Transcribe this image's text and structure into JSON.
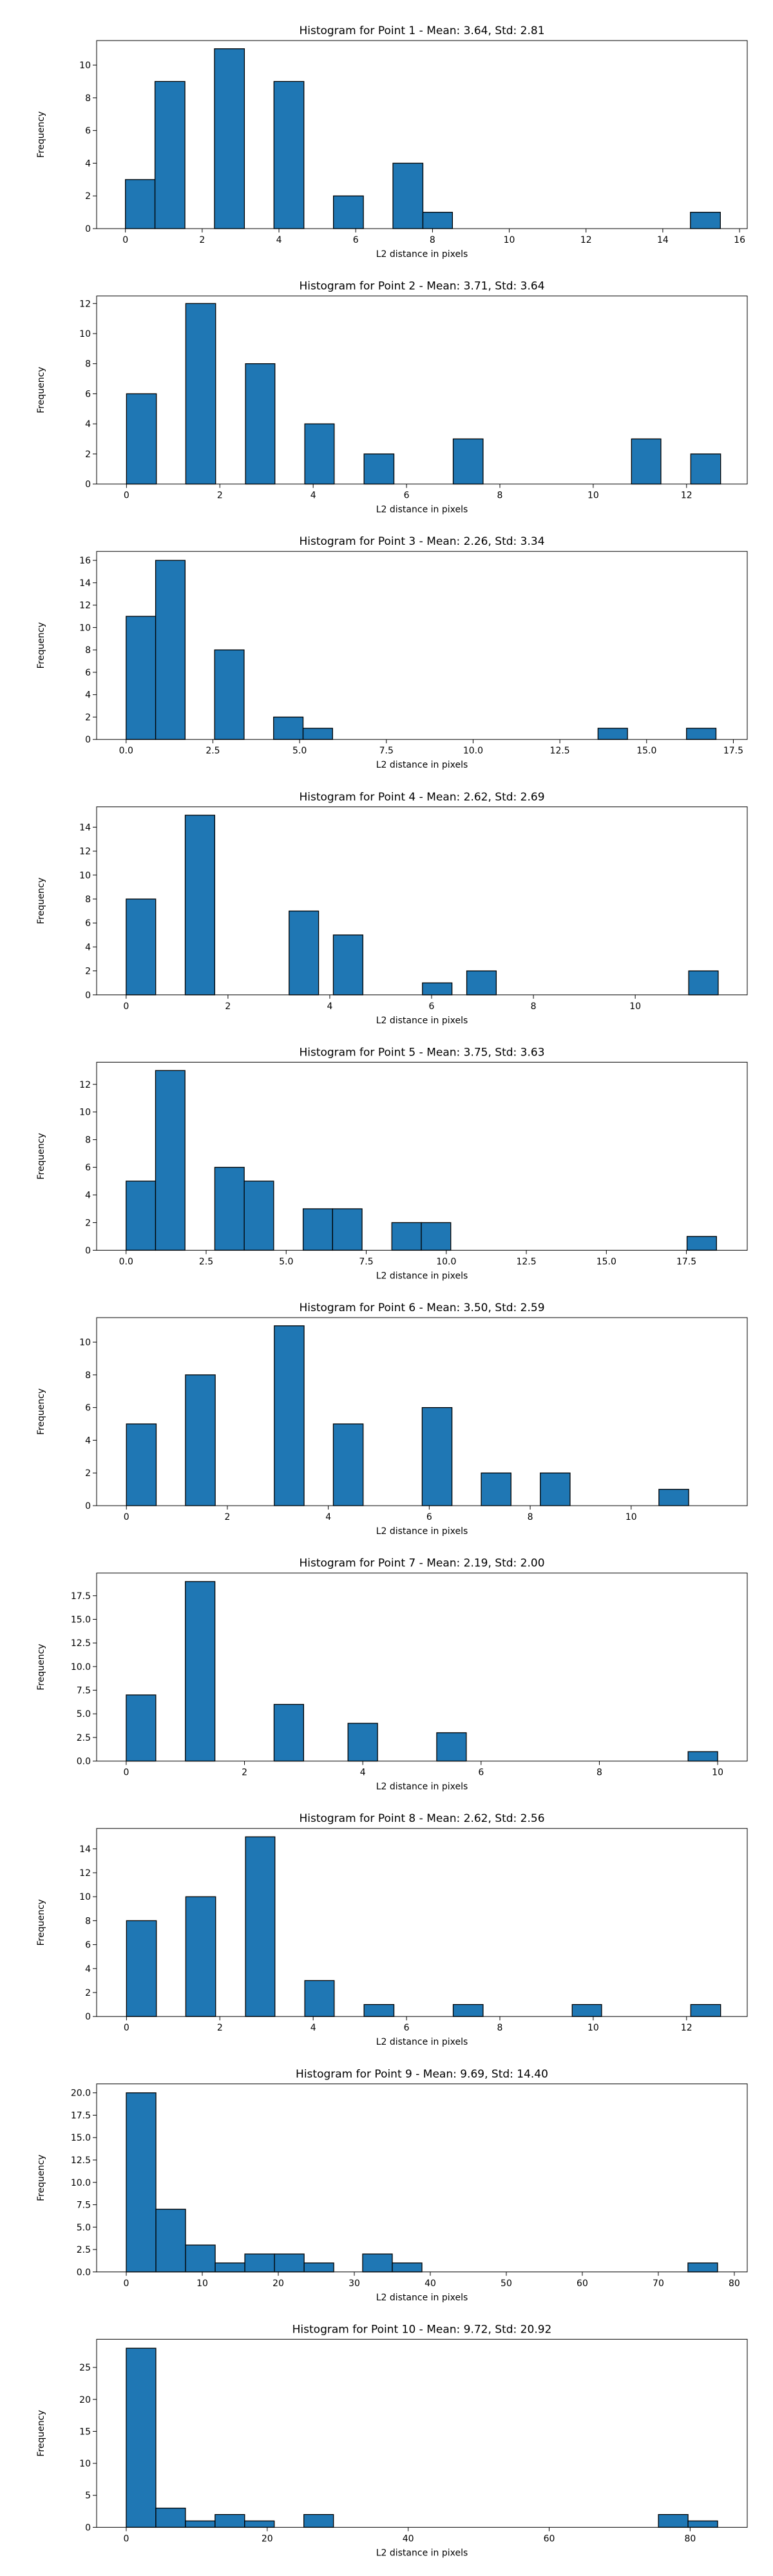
{
  "chart_data": [
    {
      "type": "bar",
      "title": "Histogram for Point 1 - Mean: 3.64, Std: 2.81",
      "xlabel": "L2 distance in pixels",
      "ylabel": "Frequency",
      "xlim": [
        -0.75,
        16.2
      ],
      "ylim": [
        0,
        11.5
      ],
      "xticks": [
        0,
        2,
        4,
        6,
        8,
        10,
        12,
        14,
        16
      ],
      "xtick_labels": [
        "0",
        "2",
        "4",
        "6",
        "8",
        "10",
        "12",
        "14",
        "16"
      ],
      "yticks": [
        0,
        2,
        4,
        6,
        8,
        10
      ],
      "ytick_labels": [
        "0",
        "2",
        "4",
        "6",
        "8",
        "10"
      ],
      "bins": [
        {
          "x0": 0.0,
          "x1": 0.77,
          "value": 3
        },
        {
          "x0": 0.77,
          "x1": 1.55,
          "value": 9
        },
        {
          "x0": 2.32,
          "x1": 3.1,
          "value": 11
        },
        {
          "x0": 3.87,
          "x1": 4.65,
          "value": 9
        },
        {
          "x0": 5.42,
          "x1": 6.2,
          "value": 2
        },
        {
          "x0": 6.97,
          "x1": 7.75,
          "value": 4
        },
        {
          "x0": 7.75,
          "x1": 8.52,
          "value": 1
        },
        {
          "x0": 14.72,
          "x1": 15.5,
          "value": 1
        }
      ]
    },
    {
      "type": "bar",
      "title": "Histogram for Point 2 - Mean: 3.71, Std: 3.64",
      "xlabel": "L2 distance in pixels",
      "ylabel": "Frequency",
      "xlim": [
        -0.64,
        13.3
      ],
      "ylim": [
        0,
        12.5
      ],
      "xticks": [
        0,
        2,
        4,
        6,
        8,
        10,
        12
      ],
      "xtick_labels": [
        "0",
        "2",
        "4",
        "6",
        "8",
        "10",
        "12"
      ],
      "yticks": [
        0,
        2,
        4,
        6,
        8,
        10,
        12
      ],
      "ytick_labels": [
        "0",
        "2",
        "4",
        "6",
        "8",
        "10",
        "12"
      ],
      "bins": [
        {
          "x0": 0.0,
          "x1": 0.64,
          "value": 6
        },
        {
          "x0": 1.27,
          "x1": 1.91,
          "value": 12
        },
        {
          "x0": 2.55,
          "x1": 3.18,
          "value": 8
        },
        {
          "x0": 3.82,
          "x1": 4.45,
          "value": 4
        },
        {
          "x0": 5.09,
          "x1": 5.73,
          "value": 2
        },
        {
          "x0": 7.0,
          "x1": 7.64,
          "value": 3
        },
        {
          "x0": 10.82,
          "x1": 11.45,
          "value": 3
        },
        {
          "x0": 12.09,
          "x1": 12.73,
          "value": 2
        }
      ]
    },
    {
      "type": "bar",
      "title": "Histogram for Point 3 - Mean: 2.26, Std: 3.34",
      "xlabel": "L2 distance in pixels",
      "ylabel": "Frequency",
      "xlim": [
        -0.85,
        17.9
      ],
      "ylim": [
        0,
        16.8
      ],
      "xticks": [
        0,
        2.5,
        5,
        7.5,
        10,
        12.5,
        15,
        17.5
      ],
      "xtick_labels": [
        "0.0",
        "2.5",
        "5.0",
        "7.5",
        "10.0",
        "12.5",
        "15.0",
        "17.5"
      ],
      "yticks": [
        0,
        2,
        4,
        6,
        8,
        10,
        12,
        14,
        16
      ],
      "ytick_labels": [
        "0",
        "2",
        "4",
        "6",
        "8",
        "10",
        "12",
        "14",
        "16"
      ],
      "bins": [
        {
          "x0": 0.0,
          "x1": 0.85,
          "value": 11
        },
        {
          "x0": 0.85,
          "x1": 1.7,
          "value": 16
        },
        {
          "x0": 2.55,
          "x1": 3.4,
          "value": 8
        },
        {
          "x0": 4.25,
          "x1": 5.1,
          "value": 2
        },
        {
          "x0": 5.1,
          "x1": 5.95,
          "value": 1
        },
        {
          "x0": 13.6,
          "x1": 14.45,
          "value": 1
        },
        {
          "x0": 16.15,
          "x1": 17.0,
          "value": 1
        }
      ]
    },
    {
      "type": "bar",
      "title": "Histogram for Point 4 - Mean: 2.62, Std: 2.69",
      "xlabel": "L2 distance in pixels",
      "ylabel": "Frequency",
      "xlim": [
        -0.58,
        12.2
      ],
      "ylim": [
        0,
        15.7
      ],
      "xticks": [
        0,
        2,
        4,
        6,
        8,
        10
      ],
      "xtick_labels": [
        "0",
        "2",
        "4",
        "6",
        "8",
        "10"
      ],
      "yticks": [
        0,
        2,
        4,
        6,
        8,
        10,
        12,
        14
      ],
      "ytick_labels": [
        "0",
        "2",
        "4",
        "6",
        "8",
        "10",
        "12",
        "14"
      ],
      "bins": [
        {
          "x0": 0.0,
          "x1": 0.58,
          "value": 8
        },
        {
          "x0": 1.16,
          "x1": 1.74,
          "value": 15
        },
        {
          "x0": 3.2,
          "x1": 3.78,
          "value": 7
        },
        {
          "x0": 4.07,
          "x1": 4.65,
          "value": 5
        },
        {
          "x0": 5.82,
          "x1": 6.4,
          "value": 1
        },
        {
          "x0": 6.69,
          "x1": 7.27,
          "value": 2
        },
        {
          "x0": 11.05,
          "x1": 11.63,
          "value": 2
        }
      ]
    },
    {
      "type": "bar",
      "title": "Histogram for Point 5 - Mean: 3.75, Std: 3.63",
      "xlabel": "L2 distance in pixels",
      "ylabel": "Frequency",
      "xlim": [
        -0.92,
        19.4
      ],
      "ylim": [
        0,
        13.6
      ],
      "xticks": [
        0,
        2.5,
        5,
        7.5,
        10,
        12.5,
        15,
        17.5
      ],
      "xtick_labels": [
        "0.0",
        "2.5",
        "5.0",
        "7.5",
        "10.0",
        "12.5",
        "15.0",
        "17.5"
      ],
      "yticks": [
        0,
        2,
        4,
        6,
        8,
        10,
        12
      ],
      "ytick_labels": [
        "0",
        "2",
        "4",
        "6",
        "8",
        "10",
        "12"
      ],
      "bins": [
        {
          "x0": 0.0,
          "x1": 0.92,
          "value": 5
        },
        {
          "x0": 0.92,
          "x1": 1.84,
          "value": 13
        },
        {
          "x0": 2.77,
          "x1": 3.69,
          "value": 6
        },
        {
          "x0": 3.69,
          "x1": 4.61,
          "value": 5
        },
        {
          "x0": 5.53,
          "x1": 6.45,
          "value": 3
        },
        {
          "x0": 6.45,
          "x1": 7.37,
          "value": 3
        },
        {
          "x0": 8.3,
          "x1": 9.22,
          "value": 2
        },
        {
          "x0": 9.22,
          "x1": 10.14,
          "value": 2
        },
        {
          "x0": 17.52,
          "x1": 18.44,
          "value": 1
        }
      ]
    },
    {
      "type": "bar",
      "title": "Histogram for Point 6 - Mean: 3.50, Std: 2.59",
      "xlabel": "L2 distance in pixels",
      "ylabel": "Frequency",
      "xlim": [
        -0.59,
        12.3
      ],
      "ylim": [
        0,
        11.5
      ],
      "xticks": [
        0,
        2,
        4,
        6,
        8,
        10
      ],
      "xtick_labels": [
        "0",
        "2",
        "4",
        "6",
        "8",
        "10"
      ],
      "yticks": [
        0,
        2,
        4,
        6,
        8,
        10
      ],
      "ytick_labels": [
        "0",
        "2",
        "4",
        "6",
        "8",
        "10"
      ],
      "bins": [
        {
          "x0": 0.0,
          "x1": 0.59,
          "value": 5
        },
        {
          "x0": 1.17,
          "x1": 1.76,
          "value": 8
        },
        {
          "x0": 2.93,
          "x1": 3.52,
          "value": 11
        },
        {
          "x0": 4.1,
          "x1": 4.69,
          "value": 5
        },
        {
          "x0": 5.86,
          "x1": 6.45,
          "value": 6
        },
        {
          "x0": 7.03,
          "x1": 7.62,
          "value": 2
        },
        {
          "x0": 8.2,
          "x1": 8.79,
          "value": 2
        },
        {
          "x0": 10.55,
          "x1": 11.14,
          "value": 1
        }
      ]
    },
    {
      "type": "bar",
      "title": "Histogram for Point 7 - Mean: 2.19, Std: 2.00",
      "xlabel": "L2 distance in pixels",
      "ylabel": "Frequency",
      "xlim": [
        -0.5,
        10.5
      ],
      "ylim": [
        0,
        19.9
      ],
      "xticks": [
        0,
        2,
        4,
        6,
        8,
        10
      ],
      "xtick_labels": [
        "0",
        "2",
        "4",
        "6",
        "8",
        "10"
      ],
      "yticks": [
        0,
        2.5,
        5,
        7.5,
        10,
        12.5,
        15,
        17.5
      ],
      "ytick_labels": [
        "0.0",
        "2.5",
        "5.0",
        "7.5",
        "10.0",
        "12.5",
        "15.0",
        "17.5"
      ],
      "bins": [
        {
          "x0": 0.0,
          "x1": 0.5,
          "value": 7
        },
        {
          "x0": 1.0,
          "x1": 1.5,
          "value": 19
        },
        {
          "x0": 2.5,
          "x1": 3.0,
          "value": 6
        },
        {
          "x0": 3.75,
          "x1": 4.25,
          "value": 4
        },
        {
          "x0": 5.25,
          "x1": 5.75,
          "value": 3
        },
        {
          "x0": 9.5,
          "x1": 10.0,
          "value": 1
        }
      ]
    },
    {
      "type": "bar",
      "title": "Histogram for Point 8 - Mean: 2.62, Std: 2.56",
      "xlabel": "L2 distance in pixels",
      "ylabel": "Frequency",
      "xlim": [
        -0.64,
        13.3
      ],
      "ylim": [
        0,
        15.7
      ],
      "xticks": [
        0,
        2,
        4,
        6,
        8,
        10,
        12
      ],
      "xtick_labels": [
        "0",
        "2",
        "4",
        "6",
        "8",
        "10",
        "12"
      ],
      "yticks": [
        0,
        2,
        4,
        6,
        8,
        10,
        12,
        14
      ],
      "ytick_labels": [
        "0",
        "2",
        "4",
        "6",
        "8",
        "10",
        "12",
        "14"
      ],
      "bins": [
        {
          "x0": 0.0,
          "x1": 0.64,
          "value": 8
        },
        {
          "x0": 1.27,
          "x1": 1.91,
          "value": 10
        },
        {
          "x0": 2.55,
          "x1": 3.18,
          "value": 15
        },
        {
          "x0": 3.82,
          "x1": 4.45,
          "value": 3
        },
        {
          "x0": 5.09,
          "x1": 5.73,
          "value": 1
        },
        {
          "x0": 7.0,
          "x1": 7.64,
          "value": 1
        },
        {
          "x0": 9.55,
          "x1": 10.18,
          "value": 1
        },
        {
          "x0": 12.09,
          "x1": 12.73,
          "value": 1
        }
      ]
    },
    {
      "type": "bar",
      "title": "Histogram for Point 9 - Mean: 9.69, Std: 14.40",
      "xlabel": "L2 distance in pixels",
      "ylabel": "Frequency",
      "xlim": [
        -3.9,
        81.7
      ],
      "ylim": [
        0,
        21
      ],
      "xticks": [
        0,
        10,
        20,
        30,
        40,
        50,
        60,
        70,
        80
      ],
      "xtick_labels": [
        "0",
        "10",
        "20",
        "30",
        "40",
        "50",
        "60",
        "70",
        "80"
      ],
      "yticks": [
        0,
        2.5,
        5,
        7.5,
        10,
        12.5,
        15,
        17.5,
        20
      ],
      "ytick_labels": [
        "0.0",
        "2.5",
        "5.0",
        "7.5",
        "10.0",
        "12.5",
        "15.0",
        "17.5",
        "20.0"
      ],
      "bins": [
        {
          "x0": 0.0,
          "x1": 3.9,
          "value": 20
        },
        {
          "x0": 3.9,
          "x1": 7.8,
          "value": 7
        },
        {
          "x0": 7.8,
          "x1": 11.7,
          "value": 3
        },
        {
          "x0": 11.7,
          "x1": 15.6,
          "value": 1
        },
        {
          "x0": 15.6,
          "x1": 19.5,
          "value": 2
        },
        {
          "x0": 19.5,
          "x1": 23.4,
          "value": 2
        },
        {
          "x0": 23.4,
          "x1": 27.3,
          "value": 1
        },
        {
          "x0": 31.1,
          "x1": 35.0,
          "value": 2
        },
        {
          "x0": 35.0,
          "x1": 38.9,
          "value": 1
        },
        {
          "x0": 73.9,
          "x1": 77.8,
          "value": 1
        }
      ]
    },
    {
      "type": "bar",
      "title": "Histogram for Point 10 - Mean: 9.72, Std: 20.92",
      "xlabel": "L2 distance in pixels",
      "ylabel": "Frequency",
      "xlim": [
        -4.2,
        88.1
      ],
      "ylim": [
        0,
        29.4
      ],
      "xticks": [
        0,
        20,
        40,
        60,
        80
      ],
      "xtick_labels": [
        "0",
        "20",
        "40",
        "60",
        "80"
      ],
      "yticks": [
        0,
        5,
        10,
        15,
        20,
        25
      ],
      "ytick_labels": [
        "0",
        "5",
        "10",
        "15",
        "20",
        "25"
      ],
      "bins": [
        {
          "x0": 0.0,
          "x1": 4.2,
          "value": 28
        },
        {
          "x0": 4.2,
          "x1": 8.4,
          "value": 3
        },
        {
          "x0": 8.4,
          "x1": 12.6,
          "value": 1
        },
        {
          "x0": 12.6,
          "x1": 16.8,
          "value": 2
        },
        {
          "x0": 16.8,
          "x1": 21.0,
          "value": 1
        },
        {
          "x0": 25.2,
          "x1": 29.4,
          "value": 2
        },
        {
          "x0": 75.5,
          "x1": 79.7,
          "value": 2
        },
        {
          "x0": 79.7,
          "x1": 83.9,
          "value": 1
        }
      ]
    }
  ]
}
